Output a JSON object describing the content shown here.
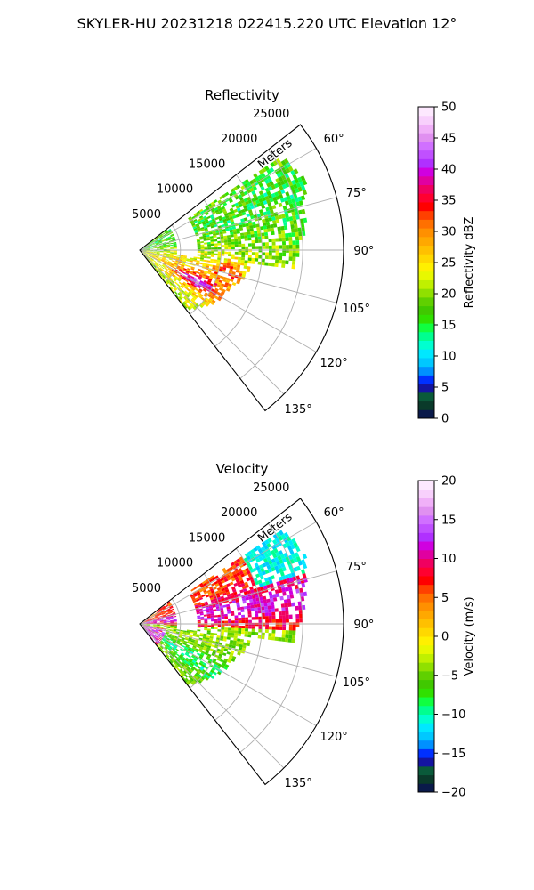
{
  "figure": {
    "suptitle": "SKYLER-HU  20231218  022415.220 UTC Elevation 12°"
  },
  "chart_data": [
    {
      "type": "polar-sector-heatmap",
      "title": "Reflectivity",
      "radial_label": "Meters",
      "radial_ticks": [
        5000,
        10000,
        15000,
        20000,
        25000
      ],
      "radial_tick_labels": [
        "5000",
        "10000",
        "15000",
        "20000",
        "25000"
      ],
      "rlim": [
        0,
        25000
      ],
      "azimuth_range_deg": [
        52,
        142
      ],
      "azimuth_ticks": [
        60,
        75,
        90,
        105,
        120,
        135
      ],
      "azimuth_tick_labels": [
        "60°",
        "75°",
        "90°",
        "105°",
        "120°",
        "135°"
      ],
      "grid": true,
      "colorbar": {
        "label": "Reflectivity dBZ",
        "range": [
          0,
          50
        ],
        "ticks": [
          0,
          5,
          10,
          15,
          20,
          25,
          30,
          35,
          40,
          45,
          50
        ],
        "tick_labels": [
          "0",
          "5",
          "10",
          "15",
          "20",
          "25",
          "30",
          "35",
          "40",
          "45",
          "50"
        ],
        "colors": [
          "#0a1a4a",
          "#0a3a2a",
          "#0a5a3a",
          "#1414a0",
          "#0030ff",
          "#0090ff",
          "#00c8ff",
          "#00e8ff",
          "#00ffd0",
          "#00ff90",
          "#10ff40",
          "#30e000",
          "#40c800",
          "#60d000",
          "#90e000",
          "#c0f000",
          "#e8f800",
          "#fff000",
          "#ffd800",
          "#ffc000",
          "#ffa800",
          "#ff9000",
          "#ff7000",
          "#ff4000",
          "#ff0000",
          "#ff0030",
          "#f00060",
          "#e000a0",
          "#d000e0",
          "#b030ff",
          "#c050ff",
          "#d070ff",
          "#e090f0",
          "#f0b0f8",
          "#f8d0fc",
          "#fde8fe"
        ]
      }
    },
    {
      "type": "polar-sector-heatmap",
      "title": "Velocity",
      "radial_label": "Meters",
      "radial_ticks": [
        5000,
        10000,
        15000,
        20000,
        25000
      ],
      "radial_tick_labels": [
        "5000",
        "10000",
        "15000",
        "20000",
        "25000"
      ],
      "rlim": [
        0,
        25000
      ],
      "azimuth_range_deg": [
        52,
        142
      ],
      "azimuth_ticks": [
        60,
        75,
        90,
        105,
        120,
        135
      ],
      "azimuth_tick_labels": [
        "60°",
        "75°",
        "90°",
        "105°",
        "120°",
        "135°"
      ],
      "grid": true,
      "colorbar": {
        "label": "Velocity (m/s)",
        "range": [
          -20,
          20
        ],
        "ticks": [
          -20,
          -15,
          -10,
          -5,
          0,
          5,
          10,
          15,
          20
        ],
        "tick_labels": [
          "−20",
          "−15",
          "−10",
          "−5",
          "0",
          "5",
          "10",
          "15",
          "20"
        ],
        "colors": [
          "#0a1a4a",
          "#0a3a2a",
          "#0a5a3a",
          "#1414a0",
          "#0030ff",
          "#0090ff",
          "#00c8ff",
          "#00e8ff",
          "#00ffd0",
          "#00ff90",
          "#10ff40",
          "#30e000",
          "#40c800",
          "#60d000",
          "#90e000",
          "#c0f000",
          "#e8f800",
          "#fff000",
          "#ffd800",
          "#ffc000",
          "#ffa800",
          "#ff9000",
          "#ff7000",
          "#ff4000",
          "#ff0000",
          "#ff0030",
          "#f00060",
          "#e000a0",
          "#d000e0",
          "#b030ff",
          "#c050ff",
          "#d070ff",
          "#e090f0",
          "#f0b0f8",
          "#f8d0fc",
          "#fde8fe"
        ]
      }
    }
  ]
}
